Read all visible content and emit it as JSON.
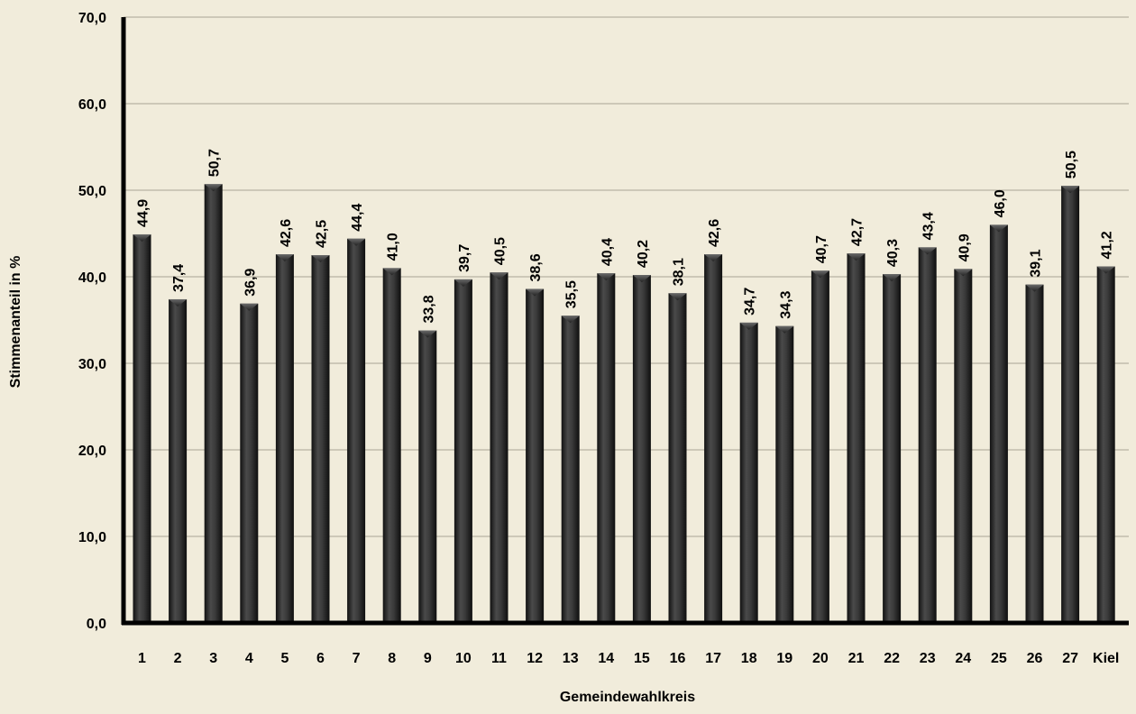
{
  "chart_data": {
    "type": "bar",
    "xlabel": "Gemeindewahlkreis",
    "ylabel": "Stimmenanteil in %",
    "ylim": [
      0,
      70
    ],
    "yticks": [
      0,
      10,
      20,
      30,
      40,
      50,
      60,
      70
    ],
    "ytick_labels": [
      "0,0",
      "10,0",
      "20,0",
      "30,0",
      "40,0",
      "50,0",
      "60,0",
      "70,0"
    ],
    "grid": true,
    "categories": [
      "1",
      "2",
      "3",
      "4",
      "5",
      "6",
      "7",
      "8",
      "9",
      "10",
      "11",
      "12",
      "13",
      "14",
      "15",
      "16",
      "17",
      "18",
      "19",
      "20",
      "21",
      "22",
      "23",
      "24",
      "25",
      "26",
      "27",
      "Kiel"
    ],
    "values": [
      44.9,
      37.4,
      50.7,
      36.9,
      42.6,
      42.5,
      44.4,
      41.0,
      33.8,
      39.7,
      40.5,
      38.6,
      35.5,
      40.4,
      40.2,
      38.1,
      42.6,
      34.7,
      34.3,
      40.7,
      42.7,
      40.3,
      43.4,
      40.9,
      46.0,
      39.1,
      50.5,
      41.2
    ],
    "value_labels": [
      "44,9",
      "37,4",
      "50,7",
      "36,9",
      "42,6",
      "42,5",
      "44,4",
      "41,0",
      "33,8",
      "39,7",
      "40,5",
      "38,6",
      "35,5",
      "40,4",
      "40,2",
      "38,1",
      "42,6",
      "34,7",
      "34,3",
      "40,7",
      "42,7",
      "40,3",
      "43,4",
      "40,9",
      "46,0",
      "39,1",
      "50,5",
      "41,2"
    ],
    "colors": {
      "bar": "#2b2b2b",
      "bar_highlight": "#5a5a5a",
      "background": "#f1ecdb",
      "grid": "#b8b3a3",
      "axis": "#000000"
    }
  }
}
